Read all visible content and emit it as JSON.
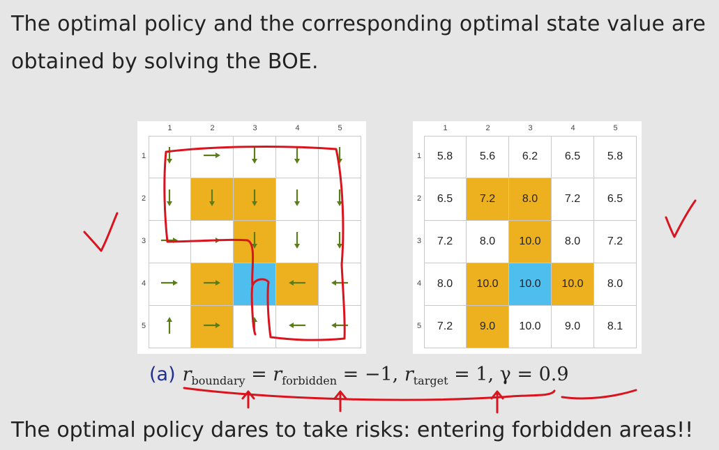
{
  "heading": "The optimal policy and the corresponding optimal state value are obtained by solving the BOE.",
  "footer": "The optimal policy dares to take risks: entering forbidden areas!!",
  "grid": {
    "col_labels": [
      "1",
      "2",
      "3",
      "4",
      "5"
    ],
    "row_labels": [
      "1",
      "2",
      "3",
      "4",
      "5"
    ],
    "forbidden_cells": [
      [
        2,
        2
      ],
      [
        2,
        3
      ],
      [
        3,
        3
      ],
      [
        4,
        2
      ],
      [
        4,
        4
      ],
      [
        5,
        2
      ]
    ],
    "target_cell": [
      4,
      3
    ],
    "colors": {
      "forbidden": "#edb120",
      "target": "#4dbeee",
      "arrow": "#5a7d1a",
      "annotation": "#d9141e"
    }
  },
  "policy": {
    "actions": [
      [
        "down",
        "right",
        "down",
        "down",
        "down"
      ],
      [
        "down",
        "down",
        "down",
        "down",
        "down"
      ],
      [
        "right",
        "right",
        "down",
        "down",
        "down"
      ],
      [
        "right",
        "right",
        "stay",
        "left",
        "left"
      ],
      [
        "up",
        "right",
        "up",
        "left",
        "left"
      ]
    ]
  },
  "values": [
    [
      "5.8",
      "5.6",
      "6.2",
      "6.5",
      "5.8"
    ],
    [
      "6.5",
      "7.2",
      "8.0",
      "7.2",
      "6.5"
    ],
    [
      "7.2",
      "8.0",
      "10.0",
      "8.0",
      "7.2"
    ],
    [
      "8.0",
      "10.0",
      "10.0",
      "10.0",
      "8.0"
    ],
    [
      "7.2",
      "9.0",
      "10.0",
      "9.0",
      "8.1"
    ]
  ],
  "caption": {
    "tag": "(a)",
    "r": "r",
    "boundary_sub": "boundary",
    "forbidden_sub": "forbidden",
    "target_sub": "target",
    "eq1": " = ",
    "eq2": " = −1, ",
    "eq3": " = 1, ",
    "gamma": "γ = 0.9"
  }
}
